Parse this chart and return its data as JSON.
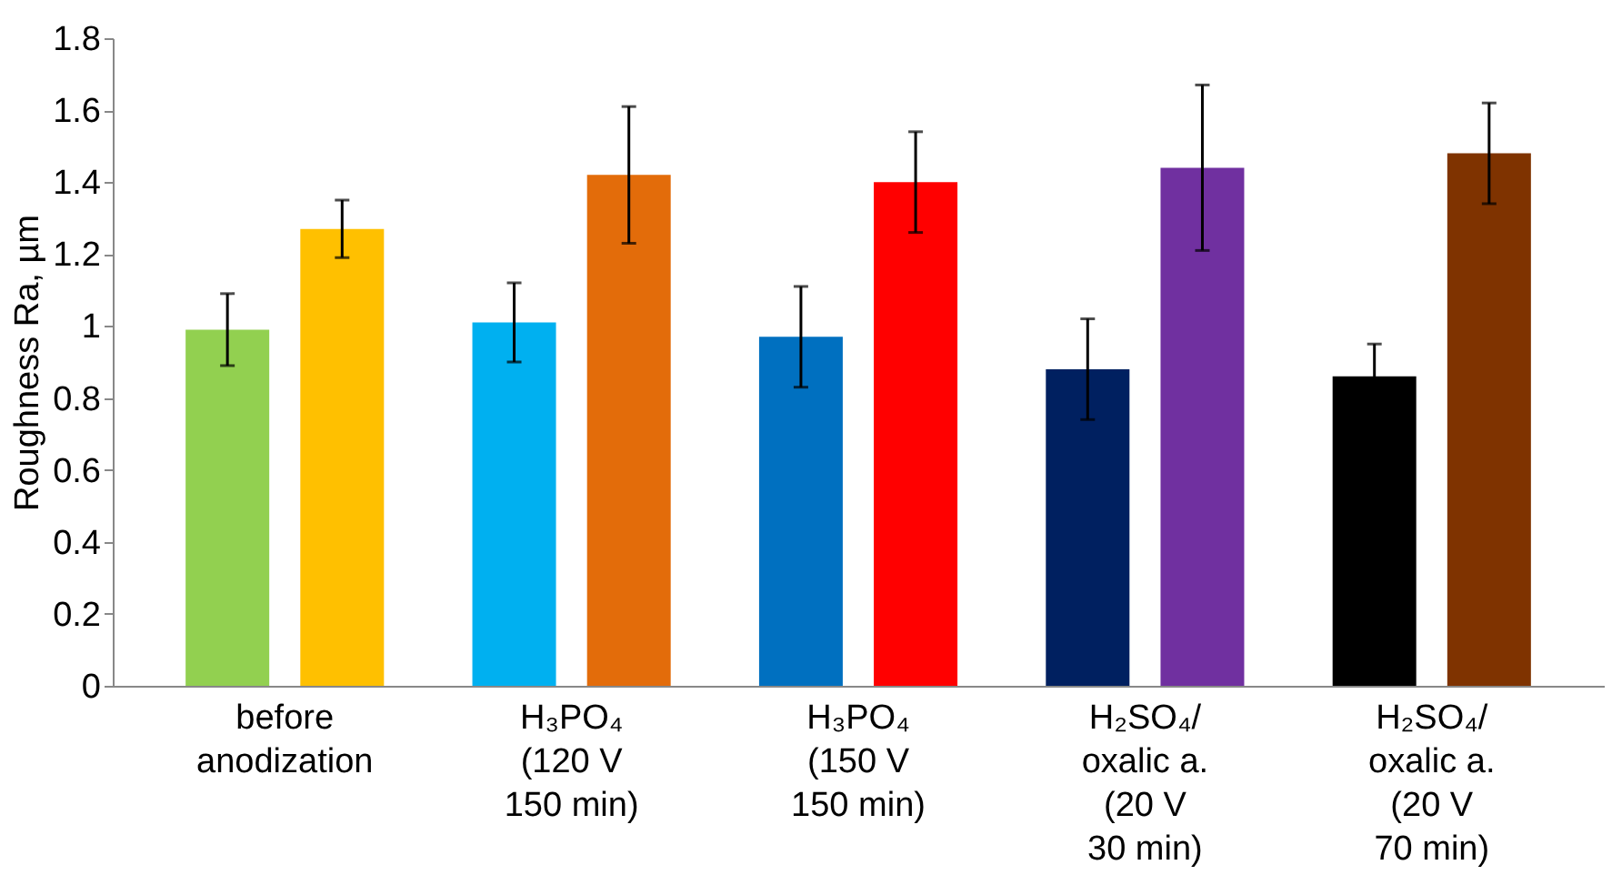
{
  "chart_data": {
    "type": "bar",
    "ylabel": "Roughness  Ra, µm",
    "categories": [
      "before\nanodization",
      "H₃PO₄\n(120 V\n150 min)",
      "H₃PO₄\n(150 V\n150 min)",
      "H₂SO₄/\noxalic a.\n(20 V\n30 min)",
      "H₂SO₄/\noxalic a.\n(20 V\n70 min)"
    ],
    "series": [
      {
        "colors": [
          "#92d050",
          "#00b0f0",
          "#0070c0",
          "#002060",
          "#000000"
        ],
        "values": [
          0.99,
          1.01,
          0.97,
          0.88,
          0.86
        ],
        "errors": [
          0.1,
          0.11,
          0.14,
          0.14,
          0.09
        ]
      },
      {
        "colors": [
          "#ffc000",
          "#e36c0a",
          "#ff0000",
          "#7030a0",
          "#7f3300"
        ],
        "values": [
          1.27,
          1.42,
          1.4,
          1.44,
          1.48
        ],
        "errors": [
          0.08,
          0.19,
          0.14,
          0.23,
          0.14
        ]
      }
    ],
    "ylim": [
      0,
      1.8
    ],
    "yticks": [
      0,
      0.2,
      0.4,
      0.6,
      0.8,
      1,
      1.2,
      1.4,
      1.6,
      1.8
    ],
    "grid": false
  }
}
